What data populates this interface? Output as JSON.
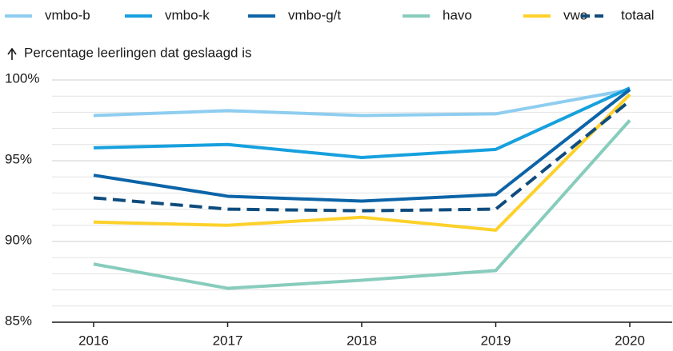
{
  "chart_data": {
    "type": "line",
    "y_label": "Percentage leerlingen dat geslaagd is",
    "categories": [
      "2016",
      "2017",
      "2018",
      "2019",
      "2020"
    ],
    "series": [
      {
        "name": "vmbo-b",
        "color": "#8ecdf0",
        "values": [
          97.8,
          98.1,
          97.8,
          97.9,
          99.4
        ]
      },
      {
        "name": "vmbo-k",
        "color": "#17a0de",
        "values": [
          95.8,
          96.0,
          95.2,
          95.7,
          99.5
        ]
      },
      {
        "name": "vmbo-g/t",
        "color": "#0c64a8",
        "values": [
          94.1,
          92.8,
          92.5,
          92.9,
          99.4
        ]
      },
      {
        "name": "havo",
        "color": "#87ccbc",
        "values": [
          88.6,
          87.1,
          87.6,
          88.2,
          97.5
        ]
      },
      {
        "name": "vwo",
        "color": "#fdd12a",
        "values": [
          91.2,
          91.0,
          91.5,
          90.7,
          99.1
        ]
      },
      {
        "name": "totaal",
        "color": "#0f4c7d",
        "dashed": true,
        "values": [
          92.7,
          92.0,
          91.9,
          92.0,
          98.7
        ]
      }
    ],
    "ylim": [
      85,
      100
    ],
    "yticks": [
      {
        "value": 85,
        "label": "85%"
      },
      {
        "value": 90,
        "label": "90%"
      },
      {
        "value": 95,
        "label": "95%"
      },
      {
        "value": 100,
        "label": "100%"
      }
    ],
    "minor_yticks": [
      86,
      87,
      88,
      89,
      91,
      92,
      93,
      94,
      96,
      97,
      98,
      99
    ],
    "grid": true,
    "legend": "top"
  }
}
